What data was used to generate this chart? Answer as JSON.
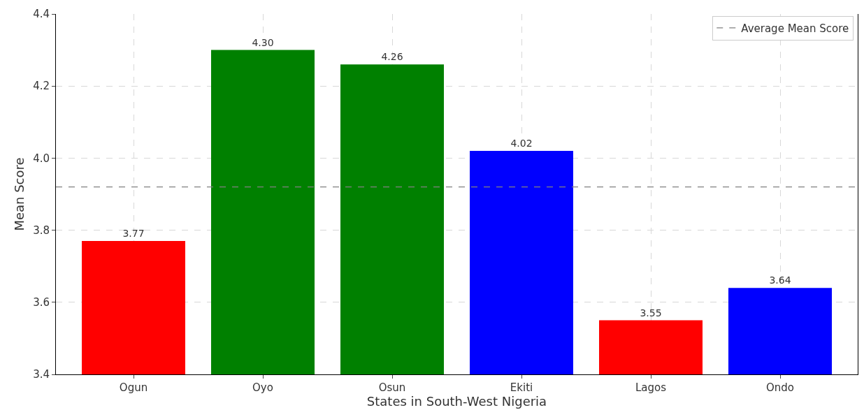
{
  "chart_data": {
    "type": "bar",
    "xlabel": "States in South-West Nigeria",
    "ylabel": "Mean Score",
    "categories": [
      "Ogun",
      "Oyo",
      "Osun",
      "Ekiti",
      "Lagos",
      "Ondo"
    ],
    "values": [
      3.77,
      4.3,
      4.26,
      4.02,
      3.55,
      3.64
    ],
    "colors": [
      "#ff0000",
      "#008000",
      "#008000",
      "#0000ff",
      "#ff0000",
      "#0000ff"
    ],
    "value_labels": [
      "3.77",
      "4.30",
      "4.26",
      "4.02",
      "3.55",
      "3.64"
    ],
    "ylim": [
      3.4,
      4.4
    ],
    "yticks": [
      {
        "value": 3.4,
        "label": "3.4"
      },
      {
        "value": 3.6,
        "label": "3.6"
      },
      {
        "value": 3.8,
        "label": "3.8"
      },
      {
        "value": 4.0,
        "label": "4.0"
      },
      {
        "value": 4.2,
        "label": "4.2"
      },
      {
        "value": 4.4,
        "label": "4.4"
      }
    ],
    "ref_lines": [
      {
        "axis": "y",
        "value": 3.92,
        "label": "Average Mean Score",
        "color": "#808080",
        "line_style": "dashed"
      }
    ],
    "grid": true,
    "legend": "top right"
  }
}
